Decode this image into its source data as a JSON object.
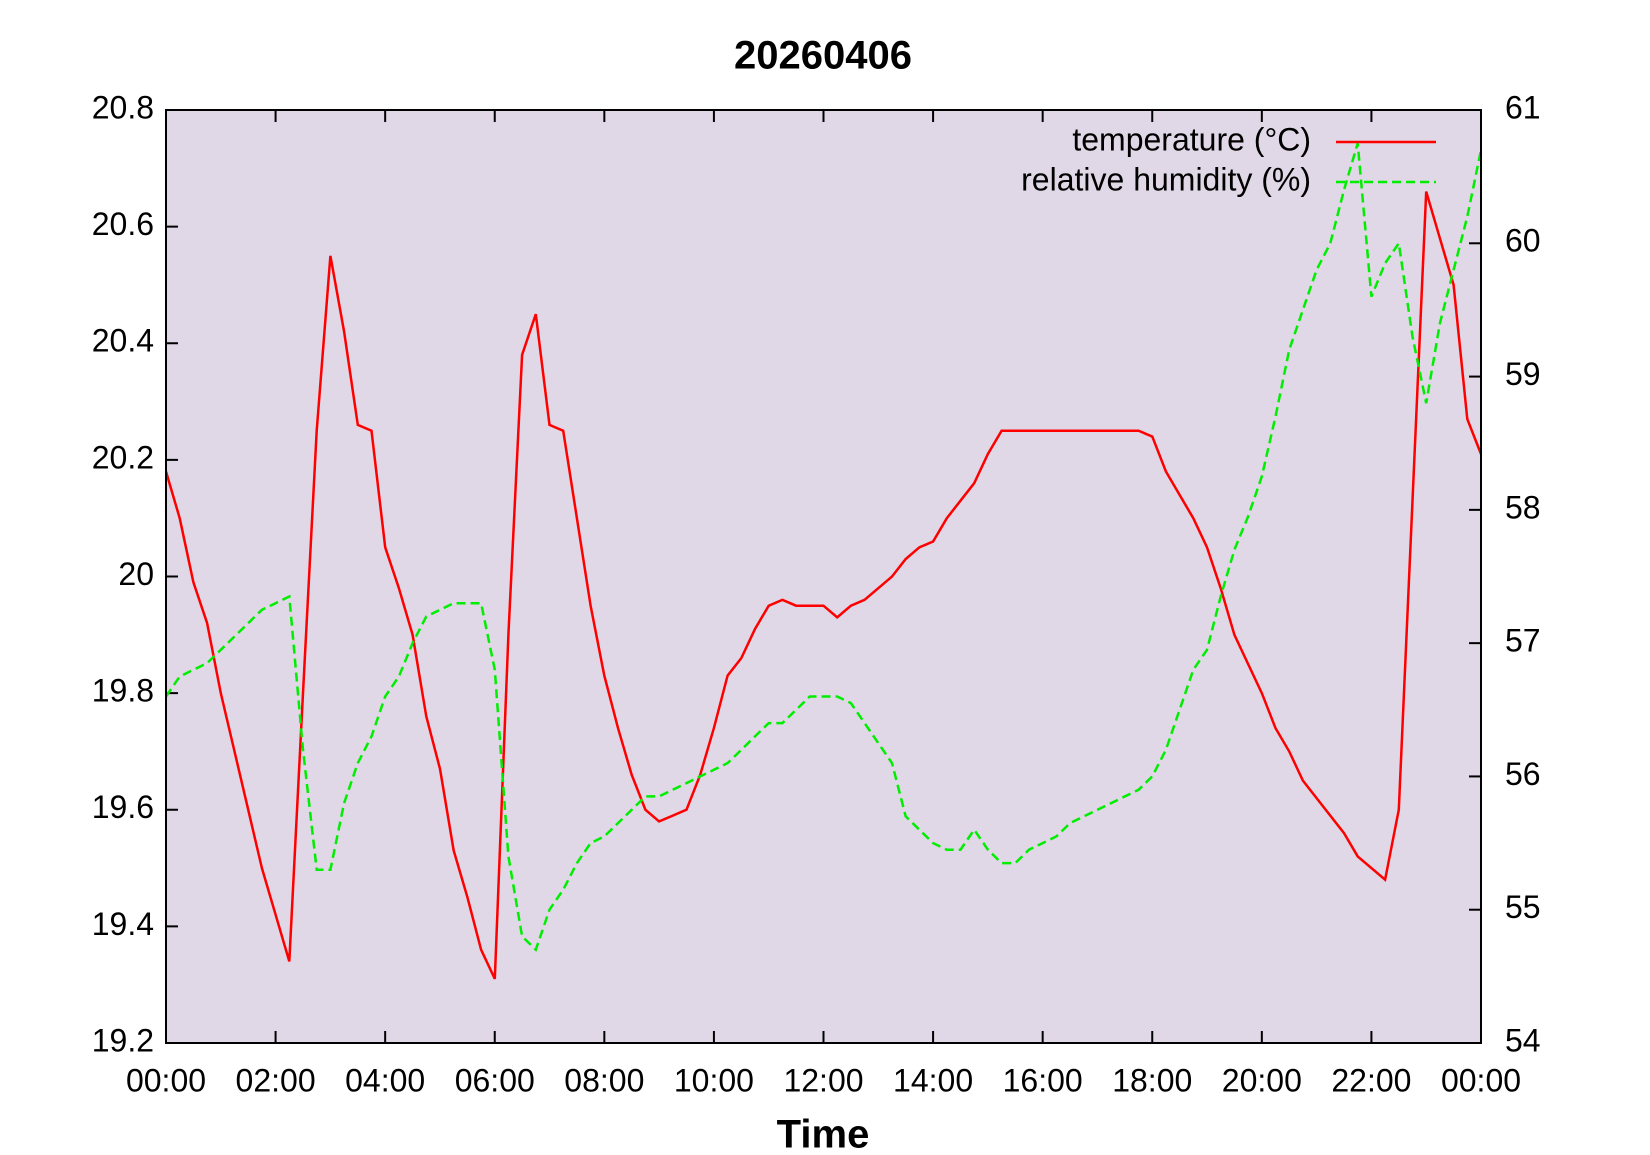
{
  "chart_data": {
    "type": "line",
    "title": "20260406",
    "x_label": "Time",
    "x": [
      0,
      0.25,
      0.5,
      0.75,
      1,
      1.25,
      1.5,
      1.75,
      2,
      2.25,
      2.5,
      2.75,
      3,
      3.25,
      3.5,
      3.75,
      4,
      4.25,
      4.5,
      4.75,
      5,
      5.25,
      5.5,
      5.75,
      6,
      6.25,
      6.5,
      6.75,
      7,
      7.25,
      7.5,
      7.75,
      8,
      8.25,
      8.5,
      8.75,
      9,
      9.25,
      9.5,
      9.75,
      10,
      10.25,
      10.5,
      10.75,
      11,
      11.25,
      11.5,
      11.75,
      12,
      12.25,
      12.5,
      12.75,
      13,
      13.25,
      13.5,
      13.75,
      14,
      14.25,
      14.5,
      14.75,
      15,
      15.25,
      15.5,
      15.75,
      16,
      16.25,
      16.5,
      16.75,
      17,
      17.25,
      17.5,
      17.75,
      18,
      18.25,
      18.5,
      18.75,
      19,
      19.25,
      19.5,
      19.75,
      20,
      20.25,
      20.5,
      20.75,
      21,
      21.25,
      21.5,
      21.75,
      22,
      22.25,
      22.5,
      22.75,
      23,
      23.25,
      23.5,
      23.75,
      24
    ],
    "series": [
      {
        "name": "temperature (°C)",
        "color": "#ff0000",
        "dashed": false,
        "values": [
          20.18,
          20.1,
          19.99,
          19.92,
          19.8,
          19.7,
          19.6,
          19.5,
          19.42,
          19.34,
          19.8,
          20.25,
          20.55,
          20.42,
          20.26,
          20.25,
          20.05,
          19.98,
          19.9,
          19.76,
          19.67,
          19.53,
          19.45,
          19.36,
          19.31,
          19.9,
          20.38,
          20.45,
          20.26,
          20.25,
          20.1,
          19.95,
          19.83,
          19.74,
          19.66,
          19.6,
          19.58,
          19.59,
          19.6,
          19.66,
          19.74,
          19.83,
          19.86,
          19.91,
          19.95,
          19.96,
          19.95,
          19.95,
          19.95,
          19.93,
          19.95,
          19.96,
          19.98,
          20.0,
          20.03,
          20.05,
          20.06,
          20.1,
          20.13,
          20.16,
          20.21,
          20.25,
          20.25,
          20.25,
          20.25,
          20.25,
          20.25,
          20.25,
          20.25,
          20.25,
          20.25,
          20.25,
          20.24,
          20.18,
          20.14,
          20.1,
          20.05,
          19.98,
          19.9,
          19.85,
          19.8,
          19.74,
          19.7,
          19.65,
          19.62,
          19.59,
          19.56,
          19.52,
          19.5,
          19.48,
          19.6,
          20.13,
          20.66,
          20.58,
          20.5,
          20.27,
          20.21
        ]
      },
      {
        "name": "relative humidity (%)",
        "color": "#00ee00",
        "dashed": true,
        "axis": "y2",
        "values": [
          56.6,
          56.75,
          56.8,
          56.85,
          56.95,
          57.05,
          57.15,
          57.25,
          57.3,
          57.35,
          56.2,
          55.3,
          55.3,
          55.8,
          56.1,
          56.3,
          56.6,
          56.75,
          57.0,
          57.2,
          57.25,
          57.3,
          57.3,
          57.3,
          56.8,
          55.4,
          54.8,
          54.7,
          55.0,
          55.15,
          55.35,
          55.5,
          55.55,
          55.65,
          55.75,
          55.85,
          55.85,
          55.9,
          55.95,
          56.0,
          56.05,
          56.1,
          56.2,
          56.3,
          56.4,
          56.4,
          56.5,
          56.6,
          56.6,
          56.6,
          56.55,
          56.4,
          56.25,
          56.1,
          55.7,
          55.6,
          55.5,
          55.45,
          55.45,
          55.6,
          55.45,
          55.35,
          55.35,
          55.45,
          55.5,
          55.55,
          55.65,
          55.7,
          55.75,
          55.8,
          55.85,
          55.9,
          56.0,
          56.2,
          56.5,
          56.8,
          56.95,
          57.35,
          57.7,
          57.95,
          58.25,
          58.7,
          59.2,
          59.5,
          59.8,
          60.0,
          60.4,
          60.75,
          59.6,
          59.85,
          60.0,
          59.3,
          58.8,
          59.4,
          59.8,
          60.2,
          60.7
        ]
      }
    ],
    "xlim": [
      0,
      24
    ],
    "xticks": [
      {
        "value": 0,
        "label": "00:00"
      },
      {
        "value": 2,
        "label": "02:00"
      },
      {
        "value": 4,
        "label": "04:00"
      },
      {
        "value": 6,
        "label": "06:00"
      },
      {
        "value": 8,
        "label": "08:00"
      },
      {
        "value": 10,
        "label": "10:00"
      },
      {
        "value": 12,
        "label": "12:00"
      },
      {
        "value": 14,
        "label": "14:00"
      },
      {
        "value": 16,
        "label": "16:00"
      },
      {
        "value": 18,
        "label": "18:00"
      },
      {
        "value": 20,
        "label": "20:00"
      },
      {
        "value": 22,
        "label": "22:00"
      },
      {
        "value": 24,
        "label": "00:00"
      }
    ],
    "ylim": [
      19.2,
      20.8
    ],
    "yticks": [
      19.2,
      19.4,
      19.6,
      19.8,
      20,
      20.2,
      20.4,
      20.6,
      20.8
    ],
    "y2lim": [
      54,
      61
    ],
    "y2ticks": [
      54,
      55,
      56,
      57,
      58,
      59,
      60,
      61
    ],
    "legend": "top-right",
    "plot_background": "#e0d8e6"
  }
}
